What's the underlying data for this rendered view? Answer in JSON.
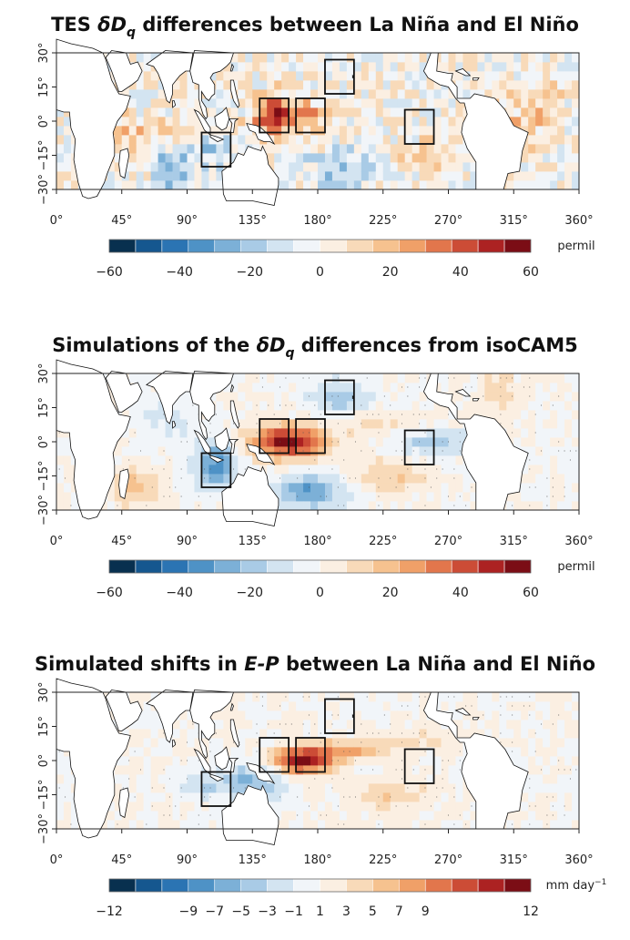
{
  "chart_data": [
    {
      "type": "heatmap",
      "title_parts": [
        "TES ",
        "δD",
        "q",
        " differences between La Niña and El Niño"
      ],
      "subtitle": "",
      "xlabel": "",
      "ylabel": "",
      "xlim": [
        0,
        360
      ],
      "ylim": [
        -30,
        30
      ],
      "x_ticks": [
        "0°",
        "45°",
        "90°",
        "135°",
        "180°",
        "225°",
        "270°",
        "315°",
        "360°"
      ],
      "y_ticks": [
        "30°",
        "15°",
        "0°",
        "−15°",
        "−30°"
      ],
      "colorbar_ticks": [
        "−60",
        "−40",
        "−20",
        "0",
        "20",
        "40",
        "60"
      ],
      "colorbar_range": [
        -60,
        60
      ],
      "units_text": [
        "permil"
      ],
      "boxes": [
        {
          "lon": [
            100,
            120
          ],
          "lat": [
            -20,
            -5
          ]
        },
        {
          "lon": [
            140,
            160
          ],
          "lat": [
            -5,
            10
          ]
        },
        {
          "lon": [
            165,
            185
          ],
          "lat": [
            -5,
            10
          ]
        },
        {
          "lon": [
            185,
            205
          ],
          "lat": [
            12,
            27
          ]
        },
        {
          "lon": [
            240,
            260
          ],
          "lat": [
            -10,
            5
          ]
        }
      ],
      "anomalies": [
        {
          "lon": 150,
          "lat": 3,
          "value": 50,
          "rx": 14,
          "ry": 8
        },
        {
          "lon": 175,
          "lat": 2,
          "value": 25,
          "rx": 12,
          "ry": 6
        },
        {
          "lon": 80,
          "lat": -20,
          "value": -25,
          "rx": 12,
          "ry": 8
        },
        {
          "lon": 110,
          "lat": -12,
          "value": -25,
          "rx": 12,
          "ry": 8
        },
        {
          "lon": 200,
          "lat": -20,
          "value": -20,
          "rx": 22,
          "ry": 8
        },
        {
          "lon": 60,
          "lat": -5,
          "value": 15,
          "rx": 30,
          "ry": 8
        },
        {
          "lon": 300,
          "lat": -5,
          "value": 20,
          "rx": 25,
          "ry": 10
        },
        {
          "lon": 245,
          "lat": -15,
          "value": 10,
          "rx": 22,
          "ry": 8
        },
        {
          "lon": 335,
          "lat": 5,
          "value": 15,
          "rx": 15,
          "ry": 10
        }
      ],
      "noise_amplitude": 14
    },
    {
      "type": "heatmap",
      "title_parts": [
        "Simulations of the ",
        "δD",
        "q",
        " differences from isoCAM5"
      ],
      "subtitle": "",
      "xlabel": "",
      "ylabel": "",
      "xlim": [
        0,
        360
      ],
      "ylim": [
        -30,
        30
      ],
      "x_ticks": [
        "0°",
        "45°",
        "90°",
        "135°",
        "180°",
        "225°",
        "270°",
        "315°",
        "360°"
      ],
      "y_ticks": [
        "30°",
        "15°",
        "0°",
        "−15°",
        "−30°"
      ],
      "colorbar_ticks": [
        "−60",
        "−40",
        "−20",
        "0",
        "20",
        "40",
        "60"
      ],
      "colorbar_range": [
        -60,
        60
      ],
      "units_text": [
        "permil"
      ],
      "boxes": [
        {
          "lon": [
            100,
            120
          ],
          "lat": [
            -20,
            -5
          ]
        },
        {
          "lon": [
            140,
            160
          ],
          "lat": [
            -5,
            10
          ]
        },
        {
          "lon": [
            165,
            185
          ],
          "lat": [
            -5,
            10
          ]
        },
        {
          "lon": [
            185,
            205
          ],
          "lat": [
            12,
            27
          ]
        },
        {
          "lon": [
            240,
            260
          ],
          "lat": [
            -10,
            5
          ]
        }
      ],
      "anomalies": [
        {
          "lon": 160,
          "lat": 0,
          "value": 55,
          "rx": 25,
          "ry": 7
        },
        {
          "lon": 110,
          "lat": -10,
          "value": -35,
          "rx": 15,
          "ry": 10
        },
        {
          "lon": 175,
          "lat": -22,
          "value": -30,
          "rx": 25,
          "ry": 8
        },
        {
          "lon": 195,
          "lat": 20,
          "value": -20,
          "rx": 20,
          "ry": 8
        },
        {
          "lon": 260,
          "lat": 0,
          "value": -20,
          "rx": 25,
          "ry": 6
        },
        {
          "lon": 230,
          "lat": -15,
          "value": 15,
          "rx": 25,
          "ry": 7
        },
        {
          "lon": 55,
          "lat": -20,
          "value": 20,
          "rx": 15,
          "ry": 8
        },
        {
          "lon": 220,
          "lat": 8,
          "value": 10,
          "rx": 30,
          "ry": 5
        },
        {
          "lon": 305,
          "lat": 22,
          "value": 15,
          "rx": 12,
          "ry": 8
        },
        {
          "lon": 75,
          "lat": 10,
          "value": -10,
          "rx": 20,
          "ry": 10
        }
      ],
      "noise_amplitude": 3
    },
    {
      "type": "heatmap",
      "title_parts": [
        "Simulated shifts in ",
        "E-P",
        "",
        " between La Niña and El Niño"
      ],
      "subtitle": "",
      "xlabel": "",
      "ylabel": "",
      "xlim": [
        0,
        360
      ],
      "ylim": [
        -30,
        30
      ],
      "x_ticks": [
        "0°",
        "45°",
        "90°",
        "135°",
        "180°",
        "225°",
        "270°",
        "315°",
        "360°"
      ],
      "y_ticks": [
        "30°",
        "15°",
        "0°",
        "−15°",
        "−30°"
      ],
      "colorbar_ticks": [
        "−12",
        "−9",
        "−7",
        "−5",
        "−3",
        "−1",
        "1",
        "3",
        "5",
        "7",
        "9",
        "12"
      ],
      "colorbar_range": [
        -12,
        12
      ],
      "units_text": [
        "mm day",
        "−1"
      ],
      "boxes": [
        {
          "lon": [
            100,
            120
          ],
          "lat": [
            -20,
            -5
          ]
        },
        {
          "lon": [
            140,
            160
          ],
          "lat": [
            -5,
            10
          ]
        },
        {
          "lon": [
            165,
            185
          ],
          "lat": [
            -5,
            10
          ]
        },
        {
          "lon": [
            185,
            205
          ],
          "lat": [
            12,
            27
          ]
        },
        {
          "lon": [
            240,
            260
          ],
          "lat": [
            -10,
            5
          ]
        }
      ],
      "anomalies": [
        {
          "lon": 170,
          "lat": 0,
          "value": 11,
          "rx": 20,
          "ry": 5
        },
        {
          "lon": 200,
          "lat": 5,
          "value": 5,
          "rx": 30,
          "ry": 4
        },
        {
          "lon": 135,
          "lat": -10,
          "value": -5,
          "rx": 20,
          "ry": 8
        },
        {
          "lon": 100,
          "lat": -10,
          "value": -3,
          "rx": 15,
          "ry": 6
        },
        {
          "lon": 230,
          "lat": -15,
          "value": 3,
          "rx": 25,
          "ry": 6
        },
        {
          "lon": 250,
          "lat": 10,
          "value": 2,
          "rx": 25,
          "ry": 4
        },
        {
          "lon": 300,
          "lat": 0,
          "value": -2,
          "rx": 20,
          "ry": 5
        }
      ],
      "noise_amplitude": 0.6
    }
  ]
}
